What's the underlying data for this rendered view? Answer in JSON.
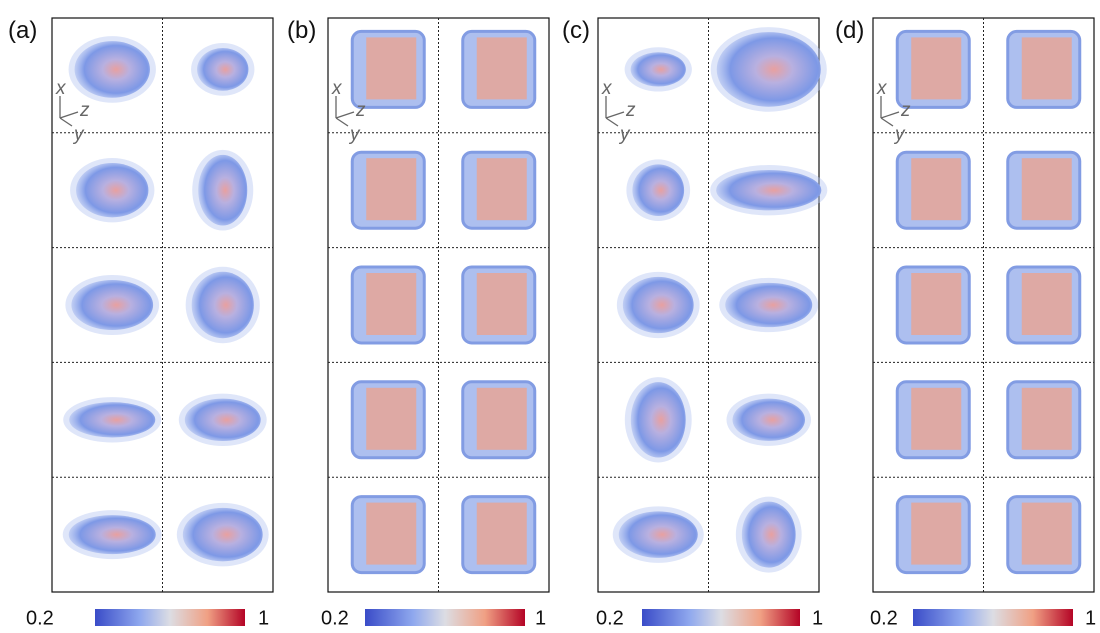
{
  "panels": [
    {
      "label": "(a)"
    },
    {
      "label": "(b)"
    },
    {
      "label": "(c)"
    },
    {
      "label": "(d)"
    }
  ],
  "axes": {
    "x": "x",
    "y": "y",
    "z": "z"
  },
  "colorbar": {
    "min": 0.2,
    "max": 1
  }
}
